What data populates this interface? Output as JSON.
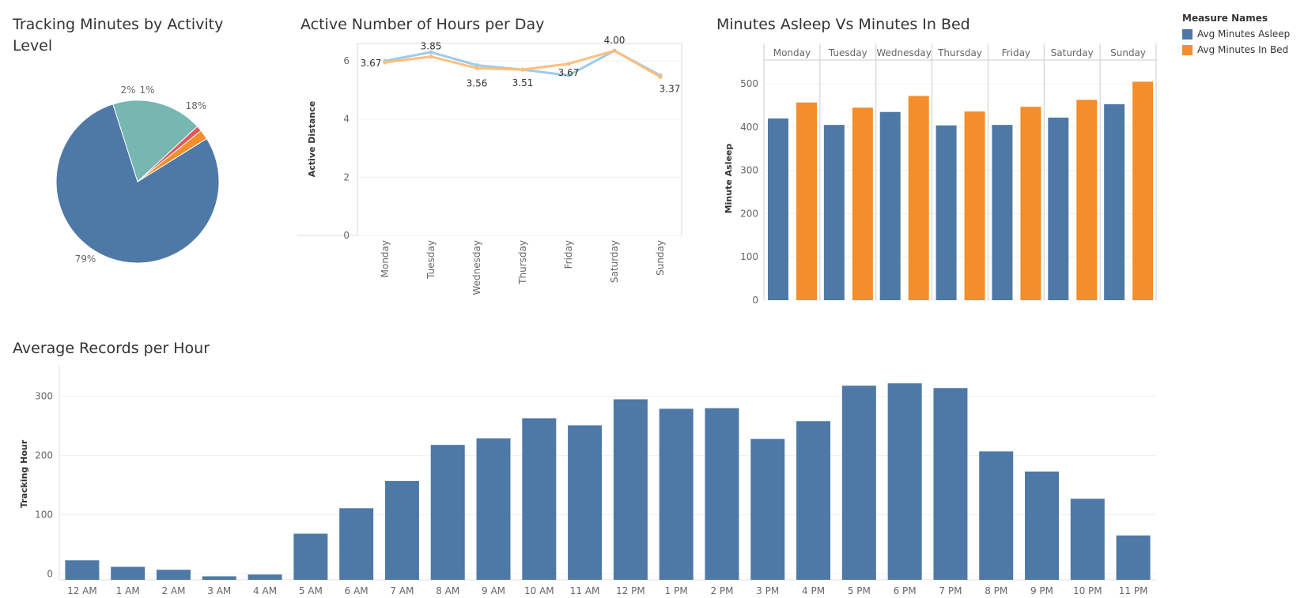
{
  "chart_data": [
    {
      "type": "pie",
      "title": "Tracking Minutes by Activity Level",
      "slices": [
        {
          "label": "79%",
          "value": 79,
          "color": "#4e79a7"
        },
        {
          "label": "18%",
          "value": 18,
          "color": "#76b7b2"
        },
        {
          "label": "1%",
          "value": 1.1,
          "color": "#e15759"
        },
        {
          "label": "2%",
          "value": 1.9,
          "color": "#f28e2b"
        }
      ]
    },
    {
      "type": "line",
      "title": "Active Number of Hours per Day",
      "xlabel": "",
      "ylabel": "Active Distance",
      "ylim": [
        0,
        6.6
      ],
      "yticks": [
        0,
        2,
        4,
        6
      ],
      "categories": [
        "Monday",
        "Tuesday",
        "Wednesday",
        "Thursday",
        "Friday",
        "Saturday",
        "Sunday"
      ],
      "series": [
        {
          "color": "#a0cbe8",
          "values": [
            6.0,
            6.3,
            5.85,
            5.7,
            5.5,
            6.35,
            5.5
          ]
        },
        {
          "color": "#ffbe7d",
          "values": [
            5.95,
            6.15,
            5.75,
            5.7,
            5.9,
            6.35,
            5.45
          ]
        }
      ],
      "data_labels": [
        "3.67",
        "3.85",
        "3.56",
        "3.51",
        "3.67",
        "4.00",
        "3.37"
      ]
    },
    {
      "type": "bar",
      "title": "Minutes Asleep Vs Minutes In Bed",
      "ylabel": "Minute Asleep",
      "ylim": [
        0,
        555
      ],
      "yticks": [
        0,
        100,
        200,
        300,
        400,
        500
      ],
      "categories": [
        "Monday",
        "Tuesday",
        "Wednesday",
        "Thursday",
        "Friday",
        "Saturday",
        "Sunday"
      ],
      "series": [
        {
          "name": "Avg Minutes Asleep",
          "color": "#4e79a7",
          "values": [
            420,
            405,
            435,
            404,
            405,
            422,
            453
          ]
        },
        {
          "name": "Avg Minutes In Bed",
          "color": "#f28e2b",
          "values": [
            457,
            445,
            472,
            436,
            447,
            463,
            505
          ]
        }
      ],
      "legend": {
        "title": "Measure Names",
        "placement": "top-right"
      }
    },
    {
      "type": "bar",
      "title": "Average Records per Hour",
      "ylabel": "Tracking Hour",
      "ylim": [
        -10,
        345
      ],
      "yticks": [
        0,
        100,
        200,
        300
      ],
      "categories": [
        "12 AM",
        "1 AM",
        "2 AM",
        "3 AM",
        "4 AM",
        "5 AM",
        "6 AM",
        "7 AM",
        "8 AM",
        "9 AM",
        "10 AM",
        "11 AM",
        "12 PM",
        "1 PM",
        "2 PM",
        "3 PM",
        "4 PM",
        "5 PM",
        "6 PM",
        "7 PM",
        "8 PM",
        "9 PM",
        "10 PM",
        "11 PM"
      ],
      "values": [
        23,
        12,
        7,
        -4,
        -1,
        68,
        111,
        157,
        218,
        229,
        263,
        251,
        295,
        279,
        280,
        228,
        258,
        318,
        322,
        314,
        207,
        173,
        127,
        65
      ],
      "color": "#4e79a7"
    }
  ]
}
